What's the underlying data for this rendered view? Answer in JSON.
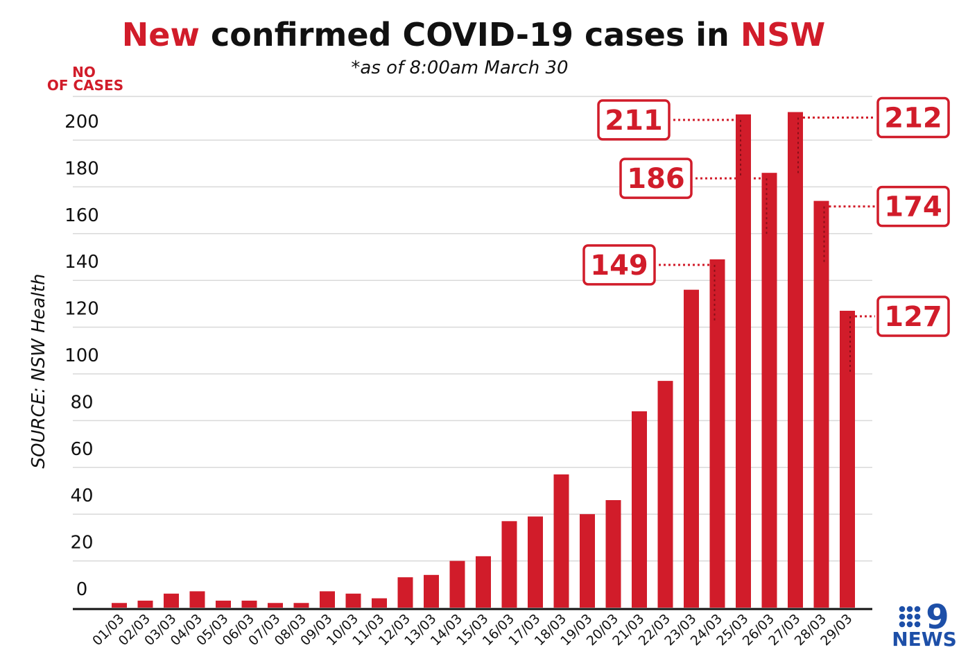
{
  "title": {
    "part1": "New",
    "part2": " confirmed COVID-19 cases in ",
    "part3": "NSW"
  },
  "subtitle": "*as of 8:00am March 30",
  "source_label": "SOURCE: NSW Health",
  "brand": {
    "logo_digit": "9",
    "logo_text": "NEWS",
    "color": "#1d4fa8"
  },
  "colors": {
    "bar": "#d11c2a",
    "accent": "#d11c2a",
    "grid": "#d9d9d9",
    "axis": "#111111"
  },
  "chart_data": {
    "type": "bar",
    "title": "New confirmed COVID-19 cases in NSW",
    "subtitle": "*as of 8:00am March 30",
    "ylabel": {
      "line1": "NO",
      "line2": "OF CASES"
    },
    "xlabel": "",
    "ylim": [
      0,
      220
    ],
    "yticks": [
      0,
      20,
      40,
      60,
      80,
      100,
      120,
      140,
      160,
      180,
      200
    ],
    "grid": true,
    "categories": [
      "01/03",
      "02/03",
      "03/03",
      "04/03",
      "05/03",
      "06/03",
      "07/03",
      "08/03",
      "09/03",
      "10/03",
      "11/03",
      "12/03",
      "13/03",
      "14/03",
      "15/03",
      "16/03",
      "17/03",
      "18/03",
      "19/03",
      "20/03",
      "21/03",
      "22/03",
      "23/03",
      "24/03",
      "25/03",
      "26/03",
      "27/03",
      "28/03",
      "29/03"
    ],
    "values": [
      2,
      3,
      6,
      7,
      3,
      3,
      2,
      2,
      7,
      6,
      4,
      13,
      14,
      20,
      22,
      37,
      39,
      57,
      40,
      46,
      84,
      97,
      136,
      149,
      211,
      186,
      212,
      174,
      127
    ],
    "annotations": [
      {
        "category": "24/03",
        "label": "149",
        "side": "left"
      },
      {
        "category": "25/03",
        "label": "211",
        "side": "left"
      },
      {
        "category": "26/03",
        "label": "186",
        "side": "left"
      },
      {
        "category": "27/03",
        "label": "212",
        "side": "right"
      },
      {
        "category": "28/03",
        "label": "174",
        "side": "right"
      },
      {
        "category": "29/03",
        "label": "127",
        "side": "right"
      }
    ]
  }
}
